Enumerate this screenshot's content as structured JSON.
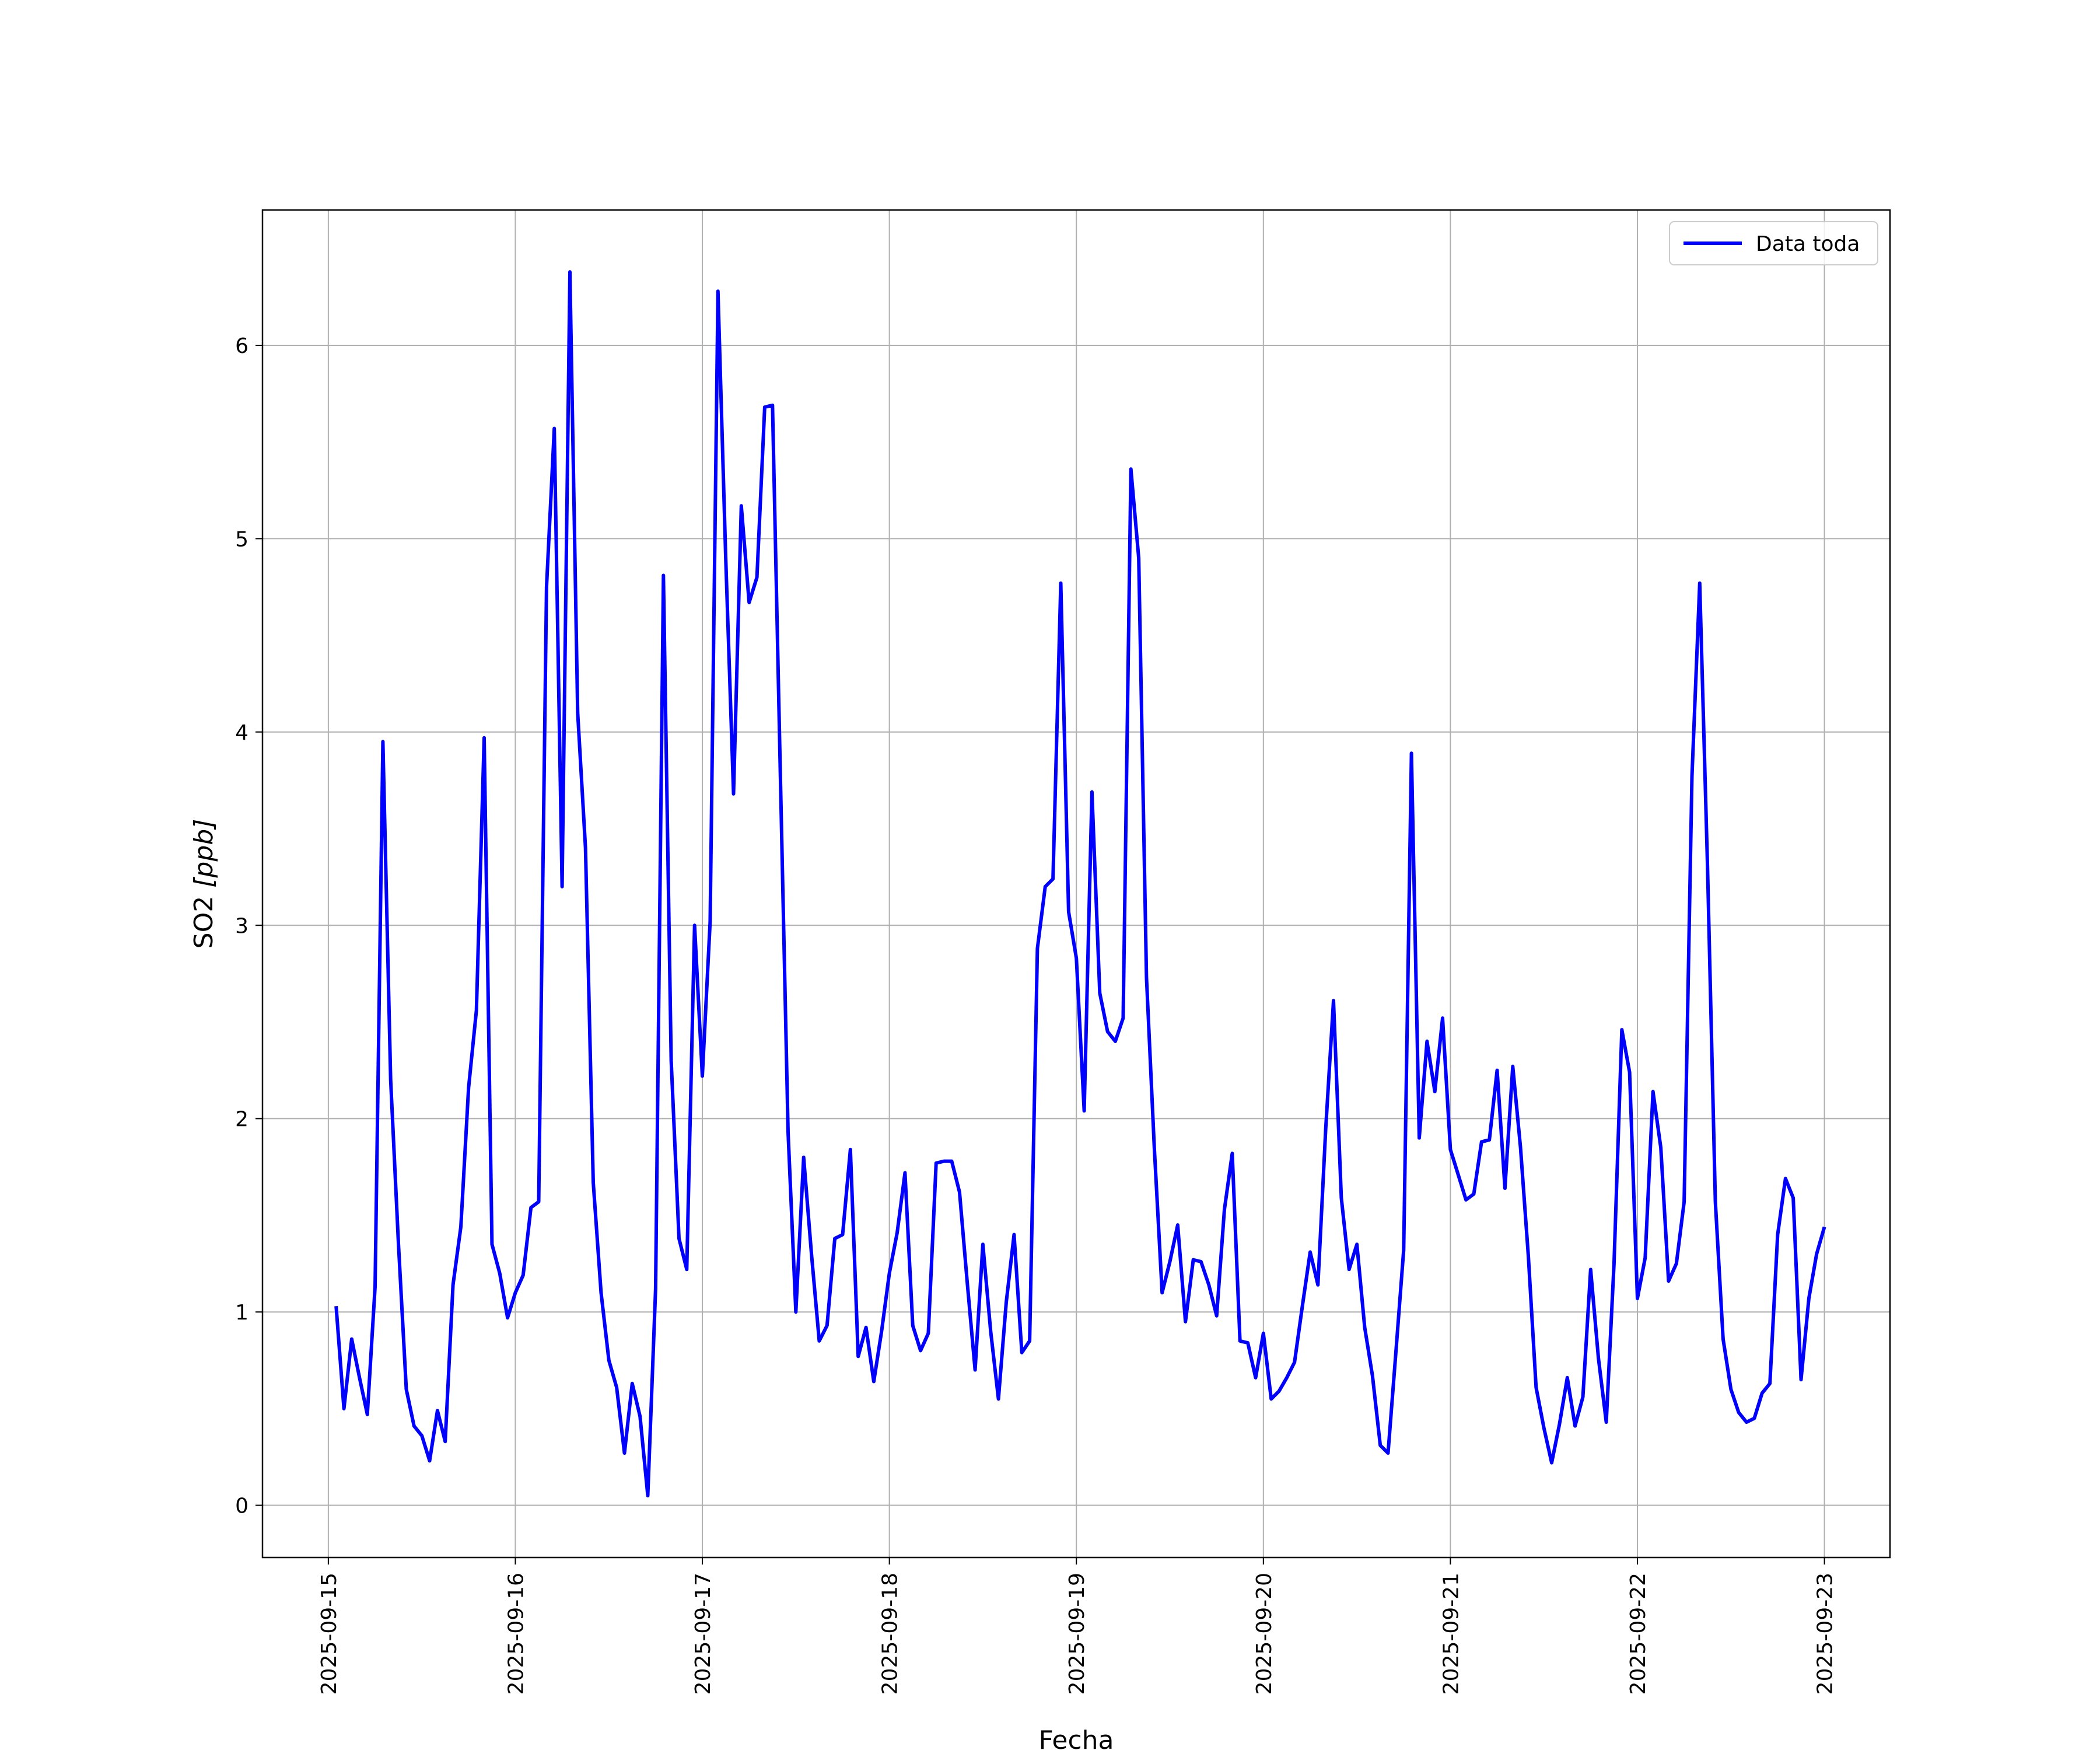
{
  "chart_data": {
    "type": "line",
    "xlabel": "Fecha",
    "ylabel_text": "SO2 ",
    "ylabel_unit": "[ppb]",
    "x_ticks": [
      "2025-09-15",
      "2025-09-16",
      "2025-09-17",
      "2025-09-18",
      "2025-09-19",
      "2025-09-20",
      "2025-09-21",
      "2025-09-22",
      "2025-09-23"
    ],
    "y_ticks": [
      "0",
      "1",
      "2",
      "3",
      "4",
      "5",
      "6"
    ],
    "xlim": [
      "2025-09-14T15:33",
      "2025-09-23T08:25"
    ],
    "ylim": [
      -0.27,
      6.7
    ],
    "grid": true,
    "legend_position": "top-right",
    "series": [
      {
        "name": "Data toda",
        "color": "#0000ff",
        "x": [
          "2025-09-15T01:00",
          "2025-09-15T02:00",
          "2025-09-15T03:00",
          "2025-09-15T04:00",
          "2025-09-15T05:00",
          "2025-09-15T06:00",
          "2025-09-15T07:00",
          "2025-09-15T08:00",
          "2025-09-15T09:00",
          "2025-09-15T10:00",
          "2025-09-15T11:00",
          "2025-09-15T12:00",
          "2025-09-15T13:00",
          "2025-09-15T14:00",
          "2025-09-15T15:00",
          "2025-09-15T16:00",
          "2025-09-15T17:00",
          "2025-09-15T18:00",
          "2025-09-15T19:00",
          "2025-09-15T20:00",
          "2025-09-15T21:00",
          "2025-09-15T22:00",
          "2025-09-15T23:00",
          "2025-09-16T00:00",
          "2025-09-16T01:00",
          "2025-09-16T02:00",
          "2025-09-16T03:00",
          "2025-09-16T04:00",
          "2025-09-16T05:00",
          "2025-09-16T06:00",
          "2025-09-16T07:00",
          "2025-09-16T08:00",
          "2025-09-16T09:00",
          "2025-09-16T10:00",
          "2025-09-16T11:00",
          "2025-09-16T12:00",
          "2025-09-16T13:00",
          "2025-09-16T14:00",
          "2025-09-16T15:00",
          "2025-09-16T16:00",
          "2025-09-16T17:00",
          "2025-09-16T18:00",
          "2025-09-16T19:00",
          "2025-09-16T20:00",
          "2025-09-16T21:00",
          "2025-09-16T22:00",
          "2025-09-16T23:00",
          "2025-09-17T00:00",
          "2025-09-17T01:00",
          "2025-09-17T02:00",
          "2025-09-17T03:00",
          "2025-09-17T04:00",
          "2025-09-17T05:00",
          "2025-09-17T06:00",
          "2025-09-17T07:00",
          "2025-09-17T08:00",
          "2025-09-17T09:00",
          "2025-09-17T10:00",
          "2025-09-17T11:00",
          "2025-09-17T12:00",
          "2025-09-17T13:00",
          "2025-09-17T14:00",
          "2025-09-17T15:00",
          "2025-09-17T16:00",
          "2025-09-17T17:00",
          "2025-09-17T18:00",
          "2025-09-17T19:00",
          "2025-09-17T20:00",
          "2025-09-17T21:00",
          "2025-09-17T22:00",
          "2025-09-17T23:00",
          "2025-09-18T00:00",
          "2025-09-18T01:00",
          "2025-09-18T02:00",
          "2025-09-18T03:00",
          "2025-09-18T04:00",
          "2025-09-18T05:00",
          "2025-09-18T06:00",
          "2025-09-18T07:00",
          "2025-09-18T08:00",
          "2025-09-18T09:00",
          "2025-09-18T10:00",
          "2025-09-18T11:00",
          "2025-09-18T12:00",
          "2025-09-18T13:00",
          "2025-09-18T14:00",
          "2025-09-18T15:00",
          "2025-09-18T16:00",
          "2025-09-18T17:00",
          "2025-09-18T18:00",
          "2025-09-18T19:00",
          "2025-09-18T20:00",
          "2025-09-18T21:00",
          "2025-09-18T22:00",
          "2025-09-18T23:00",
          "2025-09-19T00:00",
          "2025-09-19T01:00",
          "2025-09-19T02:00",
          "2025-09-19T03:00",
          "2025-09-19T04:00",
          "2025-09-19T05:00",
          "2025-09-19T06:00",
          "2025-09-19T07:00",
          "2025-09-19T08:00",
          "2025-09-19T09:00",
          "2025-09-19T10:00",
          "2025-09-19T11:00",
          "2025-09-19T12:00",
          "2025-09-19T13:00",
          "2025-09-19T14:00",
          "2025-09-19T15:00",
          "2025-09-19T16:00",
          "2025-09-19T17:00",
          "2025-09-19T18:00",
          "2025-09-19T19:00",
          "2025-09-19T20:00",
          "2025-09-19T21:00",
          "2025-09-19T22:00",
          "2025-09-19T23:00",
          "2025-09-20T00:00",
          "2025-09-20T01:00",
          "2025-09-20T02:00",
          "2025-09-20T03:00",
          "2025-09-20T04:00",
          "2025-09-20T05:00",
          "2025-09-20T06:00",
          "2025-09-20T07:00",
          "2025-09-20T08:00",
          "2025-09-20T09:00",
          "2025-09-20T10:00",
          "2025-09-20T11:00",
          "2025-09-20T12:00",
          "2025-09-20T13:00",
          "2025-09-20T14:00",
          "2025-09-20T15:00",
          "2025-09-20T16:00",
          "2025-09-20T17:00",
          "2025-09-20T18:00",
          "2025-09-20T19:00",
          "2025-09-20T20:00",
          "2025-09-20T21:00",
          "2025-09-20T22:00",
          "2025-09-20T23:00",
          "2025-09-21T00:00",
          "2025-09-21T01:00",
          "2025-09-21T02:00",
          "2025-09-21T03:00",
          "2025-09-21T04:00",
          "2025-09-21T05:00",
          "2025-09-21T06:00",
          "2025-09-21T07:00",
          "2025-09-21T08:00",
          "2025-09-21T09:00",
          "2025-09-21T10:00",
          "2025-09-21T11:00",
          "2025-09-21T12:00",
          "2025-09-21T13:00",
          "2025-09-21T14:00",
          "2025-09-21T15:00",
          "2025-09-21T16:00",
          "2025-09-21T17:00",
          "2025-09-21T18:00",
          "2025-09-21T19:00",
          "2025-09-21T20:00",
          "2025-09-21T21:00",
          "2025-09-21T22:00",
          "2025-09-21T23:00",
          "2025-09-22T00:00",
          "2025-09-22T01:00",
          "2025-09-22T02:00",
          "2025-09-22T03:00",
          "2025-09-22T04:00",
          "2025-09-22T05:00",
          "2025-09-22T06:00",
          "2025-09-22T07:00",
          "2025-09-22T08:00",
          "2025-09-22T09:00",
          "2025-09-22T10:00",
          "2025-09-22T11:00",
          "2025-09-22T12:00",
          "2025-09-22T13:00",
          "2025-09-22T14:00",
          "2025-09-22T15:00",
          "2025-09-22T16:00",
          "2025-09-22T17:00",
          "2025-09-22T18:00",
          "2025-09-22T19:00",
          "2025-09-22T20:00",
          "2025-09-22T21:00",
          "2025-09-22T22:00",
          "2025-09-22T23:00",
          "2025-09-23T00:00"
        ],
        "values": [
          1.03,
          0.5,
          0.86,
          0.66,
          0.47,
          1.13,
          3.95,
          2.2,
          1.35,
          0.6,
          0.41,
          0.36,
          0.23,
          0.49,
          0.33,
          1.14,
          1.44,
          2.16,
          2.56,
          3.97,
          1.35,
          1.2,
          0.97,
          1.1,
          1.19,
          1.54,
          1.57,
          4.75,
          5.57,
          3.2,
          6.38,
          4.1,
          3.4,
          1.67,
          1.1,
          0.75,
          0.61,
          0.27,
          0.63,
          0.46,
          0.05,
          1.12,
          4.81,
          2.3,
          1.38,
          1.22,
          3.0,
          2.22,
          3.02,
          6.28,
          4.9,
          3.68,
          5.17,
          4.67,
          4.8,
          5.68,
          5.69,
          3.8,
          1.93,
          1.0,
          1.8,
          1.3,
          0.85,
          0.93,
          1.38,
          1.4,
          1.84,
          0.77,
          0.92,
          0.64,
          0.9,
          1.2,
          1.41,
          1.72,
          0.93,
          0.8,
          0.89,
          1.77,
          1.78,
          1.78,
          1.62,
          1.15,
          0.7,
          1.35,
          0.9,
          0.55,
          1.05,
          1.4,
          0.79,
          0.85,
          2.88,
          3.2,
          3.24,
          4.77,
          3.07,
          2.83,
          2.04,
          3.69,
          2.65,
          2.45,
          2.4,
          2.52,
          5.36,
          4.9,
          2.73,
          1.85,
          1.1,
          1.26,
          1.45,
          0.95,
          1.27,
          1.26,
          1.14,
          0.98,
          1.53,
          1.82,
          0.85,
          0.84,
          0.66,
          0.89,
          0.55,
          0.59,
          0.66,
          0.74,
          1.03,
          1.31,
          1.14,
          1.95,
          2.61,
          1.59,
          1.22,
          1.35,
          0.92,
          0.67,
          0.31,
          0.27,
          0.79,
          1.32,
          3.89,
          1.9,
          2.4,
          2.14,
          2.52,
          1.84,
          1.71,
          1.58,
          1.61,
          1.88,
          1.89,
          2.25,
          1.64,
          2.27,
          1.85,
          1.29,
          0.61,
          0.4,
          0.22,
          0.42,
          0.66,
          0.41,
          0.56,
          1.22,
          0.76,
          0.43,
          1.25,
          2.46,
          2.24,
          1.07,
          1.28,
          2.14,
          1.85,
          1.16,
          1.25,
          1.57,
          3.77,
          4.77,
          3.3,
          1.57,
          0.86,
          0.6,
          0.48,
          0.43,
          0.45,
          0.58,
          0.63,
          1.4,
          1.69,
          1.59,
          0.65,
          1.07,
          1.3,
          1.44
        ]
      }
    ]
  }
}
